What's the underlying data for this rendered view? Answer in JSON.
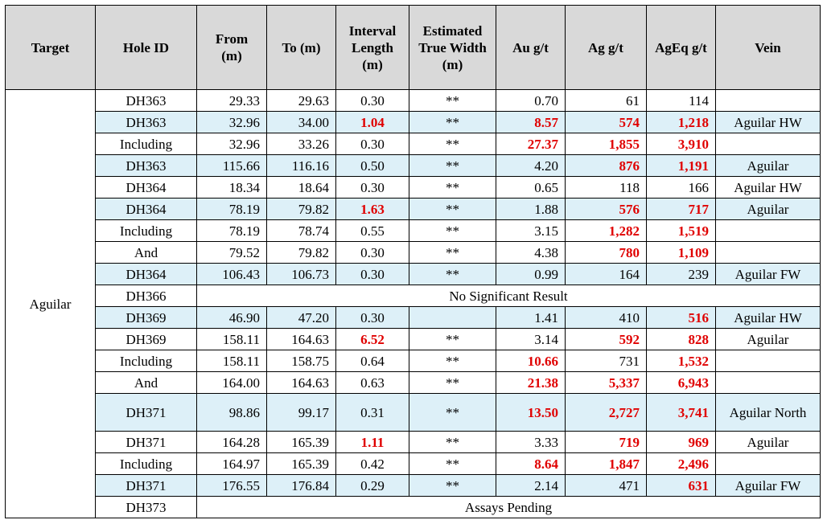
{
  "table": {
    "headers": {
      "target": "Target",
      "hole_id": "Hole ID",
      "from": "From (m)",
      "to": "To (m)",
      "interval": "Interval Length (m)",
      "etw": "Estimated True Width (m)",
      "au": "Au g/t",
      "ag": "Ag g/t",
      "ageq": "AgEq g/t",
      "vein": "Vein"
    },
    "target_value": "Aguilar",
    "highlight_color": "#e00000",
    "shade_color": "#ddf0f8",
    "rows": [
      {
        "hole": "DH363",
        "from": "29.33",
        "to": "29.63",
        "interval": "0.30",
        "etw": "**",
        "au": "0.70",
        "ag": "61",
        "ageq": "114",
        "vein": ""
      },
      {
        "hole": "DH363",
        "from": "32.96",
        "to": "34.00",
        "interval": "1.04",
        "etw": "**",
        "au": "8.57",
        "ag": "574",
        "ageq": "1,218",
        "vein": "Aguilar HW"
      },
      {
        "hole": "Including",
        "from": "32.96",
        "to": "33.26",
        "interval": "0.30",
        "etw": "**",
        "au": "27.37",
        "ag": "1,855",
        "ageq": "3,910",
        "vein": ""
      },
      {
        "hole": "DH363",
        "from": "115.66",
        "to": "116.16",
        "interval": "0.50",
        "etw": "**",
        "au": "4.20",
        "ag": "876",
        "ageq": "1,191",
        "vein": "Aguilar"
      },
      {
        "hole": "DH364",
        "from": "18.34",
        "to": "18.64",
        "interval": "0.30",
        "etw": "**",
        "au": "0.65",
        "ag": "118",
        "ageq": "166",
        "vein": "Aguilar HW"
      },
      {
        "hole": "DH364",
        "from": "78.19",
        "to": "79.82",
        "interval": "1.63",
        "etw": "**",
        "au": "1.88",
        "ag": "576",
        "ageq": "717",
        "vein": "Aguilar"
      },
      {
        "hole": "Including",
        "from": "78.19",
        "to": "78.74",
        "interval": "0.55",
        "etw": "**",
        "au": "3.15",
        "ag": "1,282",
        "ageq": "1,519",
        "vein": ""
      },
      {
        "hole": "And",
        "from": "79.52",
        "to": "79.82",
        "interval": "0.30",
        "etw": "**",
        "au": "4.38",
        "ag": "780",
        "ageq": "1,109",
        "vein": ""
      },
      {
        "hole": "DH364",
        "from": "106.43",
        "to": "106.73",
        "interval": "0.30",
        "etw": "**",
        "au": "0.99",
        "ag": "164",
        "ageq": "239",
        "vein": "Aguilar FW"
      },
      {
        "hole": "DH366",
        "note": "No Significant Result"
      },
      {
        "hole": "DH369",
        "from": "46.90",
        "to": "47.20",
        "interval": "0.30",
        "etw": "",
        "au": "1.41",
        "ag": "410",
        "ageq": "516",
        "vein": "Aguilar HW"
      },
      {
        "hole": "DH369",
        "from": "158.11",
        "to": "164.63",
        "interval": "6.52",
        "etw": "**",
        "au": "3.14",
        "ag": "592",
        "ageq": "828",
        "vein": "Aguilar"
      },
      {
        "hole": "Including",
        "from": "158.11",
        "to": "158.75",
        "interval": "0.64",
        "etw": "**",
        "au": "10.66",
        "ag": "731",
        "ageq": "1,532",
        "vein": ""
      },
      {
        "hole": "And",
        "from": "164.00",
        "to": "164.63",
        "interval": "0.63",
        "etw": "**",
        "au": "21.38",
        "ag": "5,337",
        "ageq": "6,943",
        "vein": ""
      },
      {
        "hole": "DH371",
        "from": "98.86",
        "to": "99.17",
        "interval": "0.31",
        "etw": "**",
        "au": "13.50",
        "ag": "2,727",
        "ageq": "3,741",
        "vein": "Aguilar North"
      },
      {
        "hole": "DH371",
        "from": "164.28",
        "to": "165.39",
        "interval": "1.11",
        "etw": "**",
        "au": "3.33",
        "ag": "719",
        "ageq": "969",
        "vein": "Aguilar"
      },
      {
        "hole": "Including",
        "from": "164.97",
        "to": "165.39",
        "interval": "0.42",
        "etw": "**",
        "au": "8.64",
        "ag": "1,847",
        "ageq": "2,496",
        "vein": ""
      },
      {
        "hole": "DH371",
        "from": "176.55",
        "to": "176.84",
        "interval": "0.29",
        "etw": "**",
        "au": "2.14",
        "ag": "471",
        "ageq": "631",
        "vein": "Aguilar FW"
      },
      {
        "hole": "DH373",
        "note": "Assays Pending"
      }
    ]
  }
}
